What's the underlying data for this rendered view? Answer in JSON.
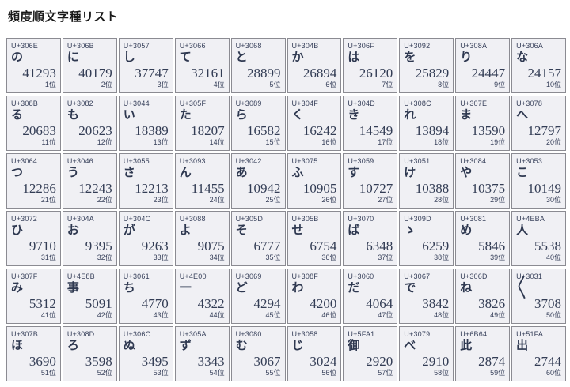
{
  "title": "頻度順文字種リスト",
  "grid": {
    "cells": [
      {
        "cp": "U+306E",
        "ch": "の",
        "count": "41293",
        "rank": "1位"
      },
      {
        "cp": "U+306B",
        "ch": "に",
        "count": "40179",
        "rank": "2位"
      },
      {
        "cp": "U+3057",
        "ch": "し",
        "count": "37747",
        "rank": "3位"
      },
      {
        "cp": "U+3066",
        "ch": "て",
        "count": "32161",
        "rank": "4位"
      },
      {
        "cp": "U+3068",
        "ch": "と",
        "count": "28899",
        "rank": "5位"
      },
      {
        "cp": "U+304B",
        "ch": "か",
        "count": "26894",
        "rank": "6位"
      },
      {
        "cp": "U+306F",
        "ch": "は",
        "count": "26120",
        "rank": "7位"
      },
      {
        "cp": "U+3092",
        "ch": "を",
        "count": "25829",
        "rank": "8位"
      },
      {
        "cp": "U+308A",
        "ch": "り",
        "count": "24447",
        "rank": "9位"
      },
      {
        "cp": "U+306A",
        "ch": "な",
        "count": "24157",
        "rank": "10位"
      },
      {
        "cp": "U+308B",
        "ch": "る",
        "count": "20683",
        "rank": "11位"
      },
      {
        "cp": "U+3082",
        "ch": "も",
        "count": "20623",
        "rank": "12位"
      },
      {
        "cp": "U+3044",
        "ch": "い",
        "count": "18389",
        "rank": "13位"
      },
      {
        "cp": "U+305F",
        "ch": "た",
        "count": "18207",
        "rank": "14位"
      },
      {
        "cp": "U+3089",
        "ch": "ら",
        "count": "16582",
        "rank": "15位"
      },
      {
        "cp": "U+304F",
        "ch": "く",
        "count": "16242",
        "rank": "16位"
      },
      {
        "cp": "U+304D",
        "ch": "き",
        "count": "14549",
        "rank": "17位"
      },
      {
        "cp": "U+308C",
        "ch": "れ",
        "count": "13894",
        "rank": "18位"
      },
      {
        "cp": "U+307E",
        "ch": "ま",
        "count": "13590",
        "rank": "19位"
      },
      {
        "cp": "U+3078",
        "ch": "へ",
        "count": "12797",
        "rank": "20位"
      },
      {
        "cp": "U+3064",
        "ch": "つ",
        "count": "12286",
        "rank": "21位"
      },
      {
        "cp": "U+3046",
        "ch": "う",
        "count": "12243",
        "rank": "22位"
      },
      {
        "cp": "U+3055",
        "ch": "さ",
        "count": "12213",
        "rank": "23位"
      },
      {
        "cp": "U+3093",
        "ch": "ん",
        "count": "11455",
        "rank": "24位"
      },
      {
        "cp": "U+3042",
        "ch": "あ",
        "count": "10942",
        "rank": "25位"
      },
      {
        "cp": "U+3075",
        "ch": "ふ",
        "count": "10905",
        "rank": "26位"
      },
      {
        "cp": "U+3059",
        "ch": "す",
        "count": "10727",
        "rank": "27位"
      },
      {
        "cp": "U+3051",
        "ch": "け",
        "count": "10388",
        "rank": "28位"
      },
      {
        "cp": "U+3084",
        "ch": "や",
        "count": "10375",
        "rank": "29位"
      },
      {
        "cp": "U+3053",
        "ch": "こ",
        "count": "10149",
        "rank": "30位"
      },
      {
        "cp": "U+3072",
        "ch": "ひ",
        "count": "9710",
        "rank": "31位"
      },
      {
        "cp": "U+304A",
        "ch": "お",
        "count": "9395",
        "rank": "32位"
      },
      {
        "cp": "U+304C",
        "ch": "が",
        "count": "9263",
        "rank": "33位"
      },
      {
        "cp": "U+3088",
        "ch": "よ",
        "count": "9075",
        "rank": "34位"
      },
      {
        "cp": "U+305D",
        "ch": "そ",
        "count": "6777",
        "rank": "35位"
      },
      {
        "cp": "U+305B",
        "ch": "せ",
        "count": "6754",
        "rank": "36位"
      },
      {
        "cp": "U+3070",
        "ch": "ば",
        "count": "6348",
        "rank": "37位"
      },
      {
        "cp": "U+309D",
        "ch": "ゝ",
        "count": "6259",
        "rank": "38位"
      },
      {
        "cp": "U+3081",
        "ch": "め",
        "count": "5846",
        "rank": "39位"
      },
      {
        "cp": "U+4EBA",
        "ch": "人",
        "count": "5538",
        "rank": "40位"
      },
      {
        "cp": "U+307F",
        "ch": "み",
        "count": "5312",
        "rank": "41位"
      },
      {
        "cp": "U+4E8B",
        "ch": "事",
        "count": "5091",
        "rank": "42位"
      },
      {
        "cp": "U+3061",
        "ch": "ち",
        "count": "4770",
        "rank": "43位"
      },
      {
        "cp": "U+4E00",
        "ch": "一",
        "count": "4322",
        "rank": "44位"
      },
      {
        "cp": "U+3069",
        "ch": "ど",
        "count": "4294",
        "rank": "45位"
      },
      {
        "cp": "U+308F",
        "ch": "わ",
        "count": "4200",
        "rank": "46位"
      },
      {
        "cp": "U+3060",
        "ch": "だ",
        "count": "4064",
        "rank": "47位"
      },
      {
        "cp": "U+3067",
        "ch": "で",
        "count": "3842",
        "rank": "48位"
      },
      {
        "cp": "U+306D",
        "ch": "ね",
        "count": "3826",
        "rank": "49位"
      },
      {
        "cp": "U+3031",
        "ch": "〱",
        "count": "3708",
        "rank": "50位"
      },
      {
        "cp": "U+307B",
        "ch": "ほ",
        "count": "3690",
        "rank": "51位"
      },
      {
        "cp": "U+308D",
        "ch": "ろ",
        "count": "3598",
        "rank": "52位"
      },
      {
        "cp": "U+306C",
        "ch": "ぬ",
        "count": "3495",
        "rank": "53位"
      },
      {
        "cp": "U+305A",
        "ch": "ず",
        "count": "3343",
        "rank": "54位"
      },
      {
        "cp": "U+3080",
        "ch": "む",
        "count": "3067",
        "rank": "55位"
      },
      {
        "cp": "U+3058",
        "ch": "じ",
        "count": "3024",
        "rank": "56位"
      },
      {
        "cp": "U+5FA1",
        "ch": "御",
        "count": "2920",
        "rank": "57位"
      },
      {
        "cp": "U+3079",
        "ch": "べ",
        "count": "2910",
        "rank": "58位"
      },
      {
        "cp": "U+6B64",
        "ch": "此",
        "count": "2874",
        "rank": "59位"
      },
      {
        "cp": "U+51FA",
        "ch": "出",
        "count": "2744",
        "rank": "60位"
      }
    ]
  }
}
